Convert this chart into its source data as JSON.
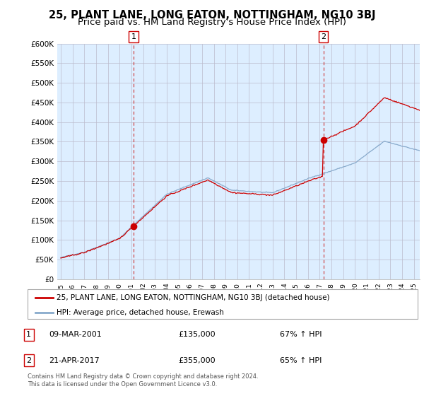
{
  "title": "25, PLANT LANE, LONG EATON, NOTTINGHAM, NG10 3BJ",
  "subtitle": "Price paid vs. HM Land Registry's House Price Index (HPI)",
  "ylabel_ticks": [
    "£0",
    "£50K",
    "£100K",
    "£150K",
    "£200K",
    "£250K",
    "£300K",
    "£350K",
    "£400K",
    "£450K",
    "£500K",
    "£550K",
    "£600K"
  ],
  "ytick_values": [
    0,
    50000,
    100000,
    150000,
    200000,
    250000,
    300000,
    350000,
    400000,
    450000,
    500000,
    550000,
    600000
  ],
  "ylim": [
    0,
    600000
  ],
  "xlim_start": 1994.7,
  "xlim_end": 2025.5,
  "transaction1_x": 2001.19,
  "transaction1_y": 135000,
  "transaction2_x": 2017.31,
  "transaction2_y": 355000,
  "legend_line1": "25, PLANT LANE, LONG EATON, NOTTINGHAM, NG10 3BJ (detached house)",
  "legend_line2": "HPI: Average price, detached house, Erewash",
  "anno1_date": "09-MAR-2001",
  "anno1_price": "£135,000",
  "anno1_hpi": "67% ↑ HPI",
  "anno2_date": "21-APR-2017",
  "anno2_price": "£355,000",
  "anno2_hpi": "65% ↑ HPI",
  "footer": "Contains HM Land Registry data © Crown copyright and database right 2024.\nThis data is licensed under the Open Government Licence v3.0.",
  "line_color_red": "#cc0000",
  "line_color_blue": "#88aacc",
  "marker_box_color": "#cc0000",
  "bg_color": "#ffffff",
  "chart_bg_color": "#ddeeff",
  "grid_color": "#bbbbcc",
  "title_fontsize": 10.5,
  "subtitle_fontsize": 9.5
}
